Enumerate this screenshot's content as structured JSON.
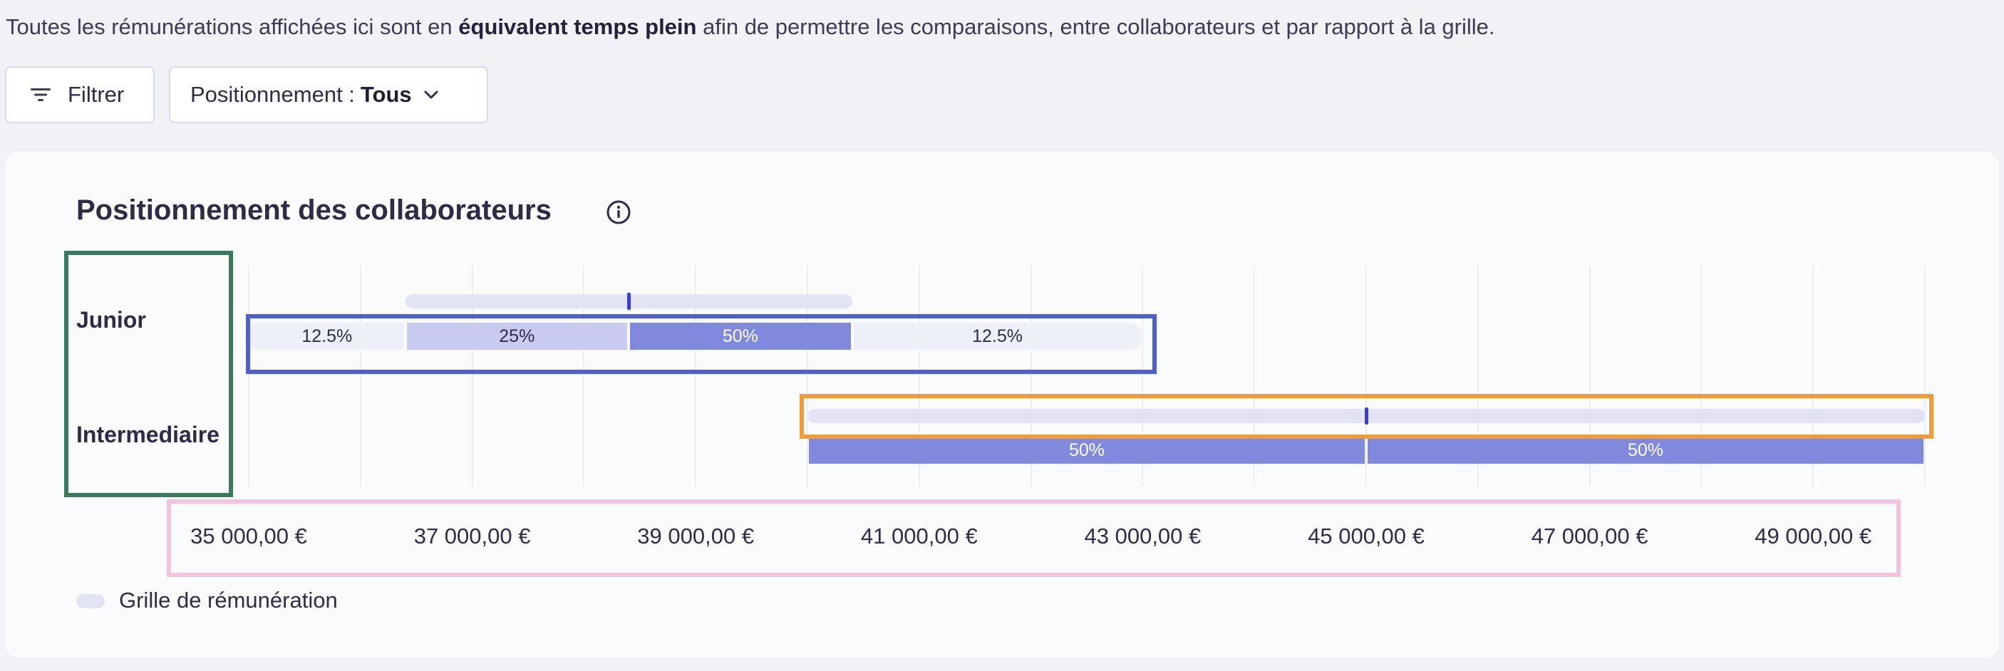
{
  "notice": {
    "before": "Toutes les rémunérations affichées ici sont en ",
    "bold": "équivalent temps plein",
    "after": " afin de permettre les comparaisons, entre collaborateurs et par rapport à la grille."
  },
  "toolbar": {
    "filter_label": "Filtrer",
    "position_label": "Positionnement :",
    "position_value": "Tous"
  },
  "card": {
    "title": "Positionnement des collaborateurs",
    "legend_label": "Grille de rémunération"
  },
  "colors": {
    "range": "#e2e4f4",
    "marker": "#3a3ec9",
    "seg_light": "#eef0f8",
    "seg_mid": "#c9cbf1",
    "seg_dark": "#8189dc",
    "highlight_green": "#3b7a5c",
    "highlight_blue": "#4f5fd0",
    "highlight_orange": "#ee9d3a",
    "highlight_pink": "#f2c4dc"
  },
  "chart_data": {
    "type": "bar",
    "orientation": "horizontal-stacked",
    "title": "Positionnement des collaborateurs",
    "categories": [
      "Junior",
      "Intermediaire"
    ],
    "x_ticks": [
      35000,
      37000,
      39000,
      41000,
      43000,
      45000,
      47000,
      49000
    ],
    "x_tick_labels": [
      "35 000,00 €",
      "37 000,00 €",
      "39 000,00 €",
      "41 000,00 €",
      "43 000,00 €",
      "45 000,00 €",
      "47 000,00 €",
      "49 000,00 €"
    ],
    "xlim": [
      34900,
      50200
    ],
    "grid": true,
    "legend": [
      {
        "name": "Grille de rémunération",
        "position": "bottom-left"
      }
    ],
    "salary_grid": [
      {
        "category": "Junior",
        "min": 36400,
        "mid": 38400,
        "max": 40400
      },
      {
        "category": "Intermediaire",
        "min": 40000,
        "mid": 45000,
        "max": 50000
      }
    ],
    "distributions": [
      {
        "category": "Junior",
        "segments": [
          {
            "from": 35000,
            "to": 36400,
            "share": "12.5%",
            "shade": "light"
          },
          {
            "from": 36400,
            "to": 38400,
            "share": "25%",
            "shade": "mid"
          },
          {
            "from": 38400,
            "to": 40400,
            "share": "50%",
            "shade": "dark"
          },
          {
            "from": 40400,
            "to": 43000,
            "share": "12.5%",
            "shade": "light"
          }
        ]
      },
      {
        "category": "Intermediaire",
        "segments": [
          {
            "from": 40000,
            "to": 45000,
            "share": "50%",
            "shade": "dark"
          },
          {
            "from": 45000,
            "to": 50000,
            "share": "50%",
            "shade": "dark"
          }
        ]
      }
    ]
  }
}
